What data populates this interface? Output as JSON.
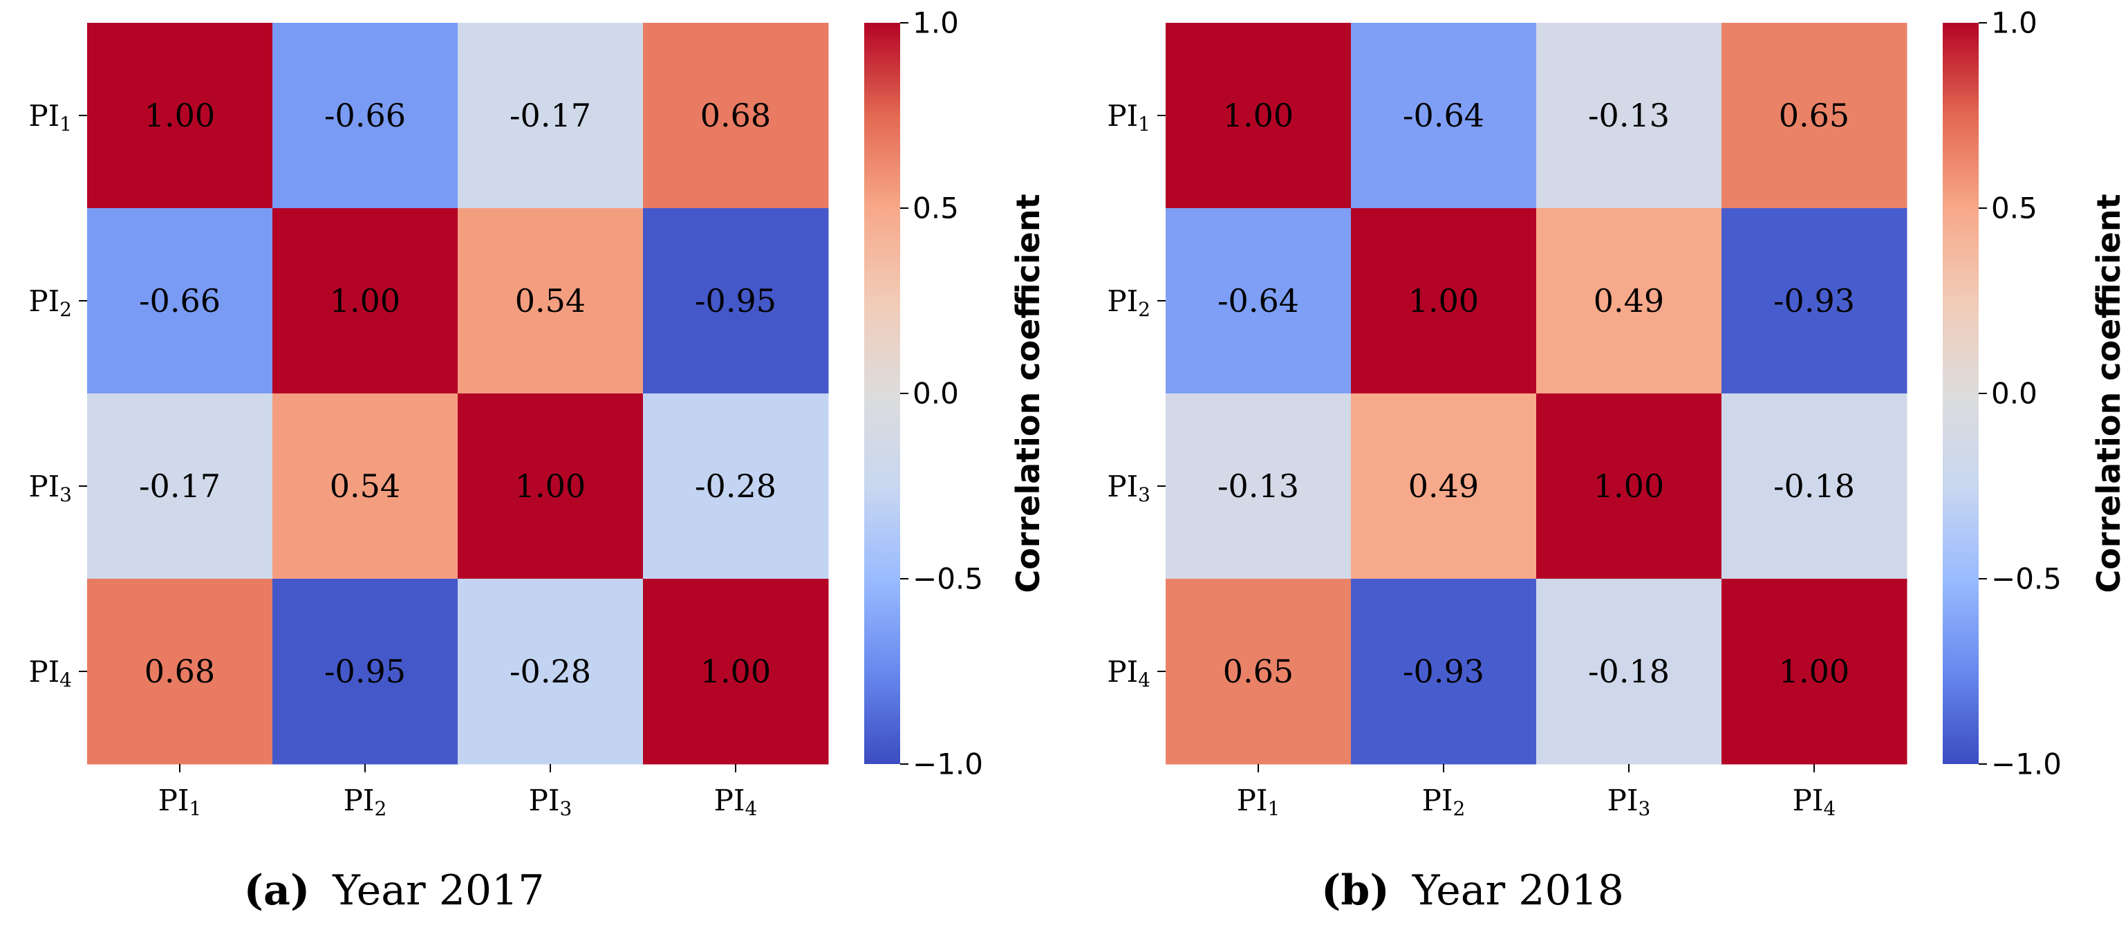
{
  "colors": {
    "cmap": [
      "#3b4cc0",
      "#6889ee",
      "#9abbff",
      "#c9d7f0",
      "#dddcdc",
      "#f2cbb7",
      "#f7a889",
      "#e26952",
      "#b40426"
    ],
    "text_dark": "#000000",
    "text_light": "#ffffff",
    "axis": "#000000"
  },
  "chart_data": [
    {
      "type": "heatmap",
      "panel_letter": "(a)",
      "caption": "Year 2017",
      "x_categories": [
        {
          "base": "PI",
          "sub": "1"
        },
        {
          "base": "PI",
          "sub": "2"
        },
        {
          "base": "PI",
          "sub": "3"
        },
        {
          "base": "PI",
          "sub": "4"
        }
      ],
      "y_categories": [
        {
          "base": "PI",
          "sub": "1"
        },
        {
          "base": "PI",
          "sub": "2"
        },
        {
          "base": "PI",
          "sub": "3"
        },
        {
          "base": "PI",
          "sub": "4"
        }
      ],
      "values": [
        [
          1.0,
          -0.66,
          -0.17,
          0.68
        ],
        [
          -0.66,
          1.0,
          0.54,
          -0.95
        ],
        [
          -0.17,
          0.54,
          1.0,
          -0.28
        ],
        [
          0.68,
          -0.95,
          -0.28,
          1.0
        ]
      ],
      "cell_labels": [
        [
          "1.00",
          "-0.66",
          "-0.17",
          "0.68"
        ],
        [
          "-0.66",
          "1.00",
          "0.54",
          "-0.95"
        ],
        [
          "-0.17",
          "0.54",
          "1.00",
          "-0.28"
        ],
        [
          "0.68",
          "-0.95",
          "-0.28",
          "1.00"
        ]
      ],
      "colorbar": {
        "label": "Correlation coefficient",
        "range": [
          -1.0,
          1.0
        ],
        "ticks": [
          1.0,
          0.5,
          0.0,
          -0.5,
          -1.0
        ],
        "tick_labels": [
          "1.0",
          "0.5",
          "0.0",
          "−0.5",
          "−1.0"
        ]
      }
    },
    {
      "type": "heatmap",
      "panel_letter": "(b)",
      "caption": "Year 2018",
      "x_categories": [
        {
          "base": "PI",
          "sub": "1"
        },
        {
          "base": "PI",
          "sub": "2"
        },
        {
          "base": "PI",
          "sub": "3"
        },
        {
          "base": "PI",
          "sub": "4"
        }
      ],
      "y_categories": [
        {
          "base": "PI",
          "sub": "1"
        },
        {
          "base": "PI",
          "sub": "2"
        },
        {
          "base": "PI",
          "sub": "3"
        },
        {
          "base": "PI",
          "sub": "4"
        }
      ],
      "values": [
        [
          1.0,
          -0.64,
          -0.13,
          0.65
        ],
        [
          -0.64,
          1.0,
          0.49,
          -0.93
        ],
        [
          -0.13,
          0.49,
          1.0,
          -0.18
        ],
        [
          0.65,
          -0.93,
          -0.18,
          1.0
        ]
      ],
      "cell_labels": [
        [
          "1.00",
          "-0.64",
          "-0.13",
          "0.65"
        ],
        [
          "-0.64",
          "1.00",
          "0.49",
          "-0.93"
        ],
        [
          "-0.13",
          "0.49",
          "1.00",
          "-0.18"
        ],
        [
          "0.65",
          "-0.93",
          "-0.18",
          "1.00"
        ]
      ],
      "colorbar": {
        "label": "Correlation coefficient",
        "range": [
          -1.0,
          1.0
        ],
        "ticks": [
          1.0,
          0.5,
          0.0,
          -0.5,
          -1.0
        ],
        "tick_labels": [
          "1.0",
          "0.5",
          "0.0",
          "−0.5",
          "−1.0"
        ]
      }
    }
  ]
}
